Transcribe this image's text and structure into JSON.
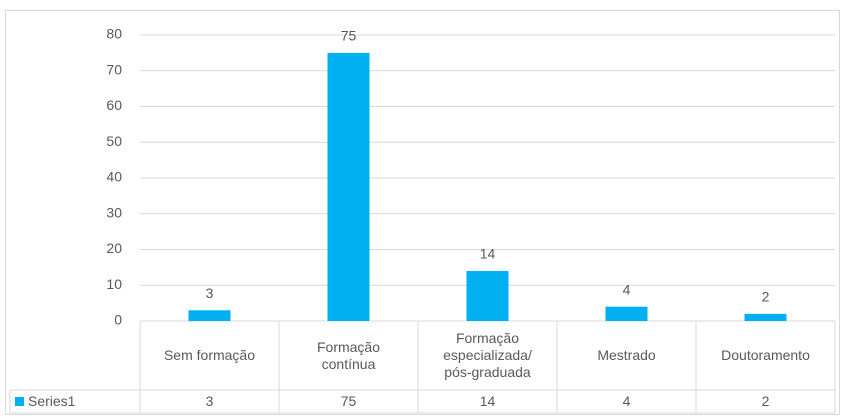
{
  "chart_data": {
    "type": "bar",
    "categories": [
      "Sem formação",
      "Formação\ncontínua",
      "Formação\nespecializada/\npós-graduada",
      "Mestrado",
      "Doutoramento"
    ],
    "series": [
      {
        "name": "Series1",
        "color": "#00b0f0",
        "values": [
          3,
          75,
          14,
          4,
          2
        ]
      }
    ],
    "ylim": [
      0,
      80
    ],
    "yticks": [
      0,
      10,
      20,
      30,
      40,
      50,
      60,
      70,
      80
    ],
    "grid": true,
    "data_table": true
  }
}
